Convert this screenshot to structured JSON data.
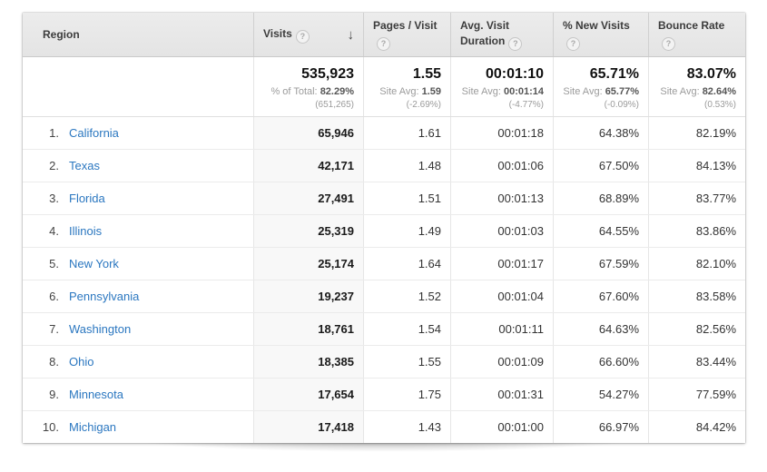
{
  "icons": {
    "help_glyph": "?",
    "sort_desc_glyph": "↓"
  },
  "colors": {
    "link_blue": "#2b77c0",
    "header_bg": "#e9e9e9",
    "sorted_column_bg": "#f8f8f8"
  },
  "table": {
    "columns": [
      {
        "label": "Region"
      },
      {
        "label": "Visits",
        "sorted": "descending"
      },
      {
        "label": "Pages / Visit"
      },
      {
        "label": "Avg. Visit Duration"
      },
      {
        "label": "% New Visits"
      },
      {
        "label": "Bounce Rate"
      }
    ],
    "summary": {
      "cells": [
        {
          "value": "535,923",
          "sub_label": "% of Total:",
          "sub_value": "82.29%",
          "sub_note": "(651,265)"
        },
        {
          "value": "1.55",
          "sub_label": "Site Avg:",
          "sub_value": "1.59",
          "sub_note": "(-2.69%)"
        },
        {
          "value": "00:01:10",
          "sub_label": "Site Avg:",
          "sub_value": "00:01:14",
          "sub_note": "(-4.77%)"
        },
        {
          "value": "65.71%",
          "sub_label": "Site Avg:",
          "sub_value": "65.77%",
          "sub_note": "(-0.09%)"
        },
        {
          "value": "83.07%",
          "sub_label": "Site Avg:",
          "sub_value": "82.64%",
          "sub_note": "(0.53%)"
        }
      ]
    },
    "rows": [
      {
        "rank": "1.",
        "region": "California",
        "visits": "65,946",
        "pages_per_visit": "1.61",
        "avg_visit_duration": "00:01:18",
        "pct_new_visits": "64.38%",
        "bounce_rate": "82.19%"
      },
      {
        "rank": "2.",
        "region": "Texas",
        "visits": "42,171",
        "pages_per_visit": "1.48",
        "avg_visit_duration": "00:01:06",
        "pct_new_visits": "67.50%",
        "bounce_rate": "84.13%"
      },
      {
        "rank": "3.",
        "region": "Florida",
        "visits": "27,491",
        "pages_per_visit": "1.51",
        "avg_visit_duration": "00:01:13",
        "pct_new_visits": "68.89%",
        "bounce_rate": "83.77%"
      },
      {
        "rank": "4.",
        "region": "Illinois",
        "visits": "25,319",
        "pages_per_visit": "1.49",
        "avg_visit_duration": "00:01:03",
        "pct_new_visits": "64.55%",
        "bounce_rate": "83.86%"
      },
      {
        "rank": "5.",
        "region": "New York",
        "visits": "25,174",
        "pages_per_visit": "1.64",
        "avg_visit_duration": "00:01:17",
        "pct_new_visits": "67.59%",
        "bounce_rate": "82.10%"
      },
      {
        "rank": "6.",
        "region": "Pennsylvania",
        "visits": "19,237",
        "pages_per_visit": "1.52",
        "avg_visit_duration": "00:01:04",
        "pct_new_visits": "67.60%",
        "bounce_rate": "83.58%"
      },
      {
        "rank": "7.",
        "region": "Washington",
        "visits": "18,761",
        "pages_per_visit": "1.54",
        "avg_visit_duration": "00:01:11",
        "pct_new_visits": "64.63%",
        "bounce_rate": "82.56%"
      },
      {
        "rank": "8.",
        "region": "Ohio",
        "visits": "18,385",
        "pages_per_visit": "1.55",
        "avg_visit_duration": "00:01:09",
        "pct_new_visits": "66.60%",
        "bounce_rate": "83.44%"
      },
      {
        "rank": "9.",
        "region": "Minnesota",
        "visits": "17,654",
        "pages_per_visit": "1.75",
        "avg_visit_duration": "00:01:31",
        "pct_new_visits": "54.27%",
        "bounce_rate": "77.59%"
      },
      {
        "rank": "10.",
        "region": "Michigan",
        "visits": "17,418",
        "pages_per_visit": "1.43",
        "avg_visit_duration": "00:01:00",
        "pct_new_visits": "66.97%",
        "bounce_rate": "84.42%"
      }
    ]
  }
}
